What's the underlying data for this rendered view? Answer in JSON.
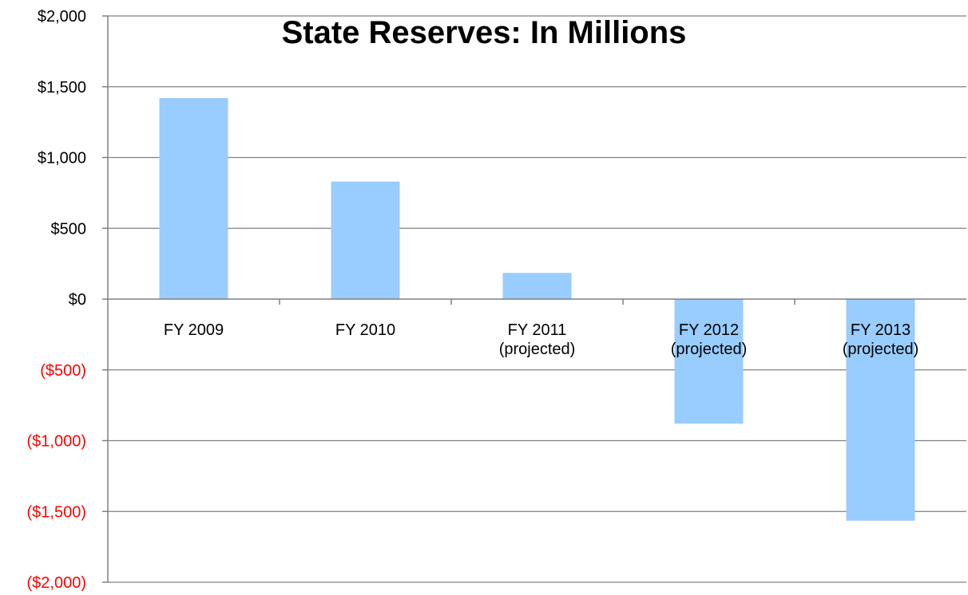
{
  "chart_data": {
    "type": "bar",
    "title": "State Reserves: In Millions",
    "xlabel": "",
    "ylabel": "",
    "categories": [
      [
        "FY 2009"
      ],
      [
        "FY 2010"
      ],
      [
        "FY 2011",
        "(projected)"
      ],
      [
        "FY 2012",
        "(projected)"
      ],
      [
        "FY 2013",
        "(projected)"
      ]
    ],
    "values": [
      1420,
      830,
      185,
      -880,
      -1565
    ],
    "ylim": [
      -2000,
      2000
    ],
    "yticks": [
      2000,
      1500,
      1000,
      500,
      0,
      -500,
      -1000,
      -1500,
      -2000
    ],
    "ytick_labels": [
      "$2,000",
      "$1,500",
      "$1,000",
      "$500",
      "$0",
      "($500)",
      "($1,000)",
      "($1,500)",
      "($2,000)"
    ],
    "grid": true,
    "legend": "none",
    "colors": {
      "bar": "#99ccff",
      "positive_tick": "#000000",
      "negative_tick": "#ff0000",
      "grid": "#808080"
    }
  }
}
